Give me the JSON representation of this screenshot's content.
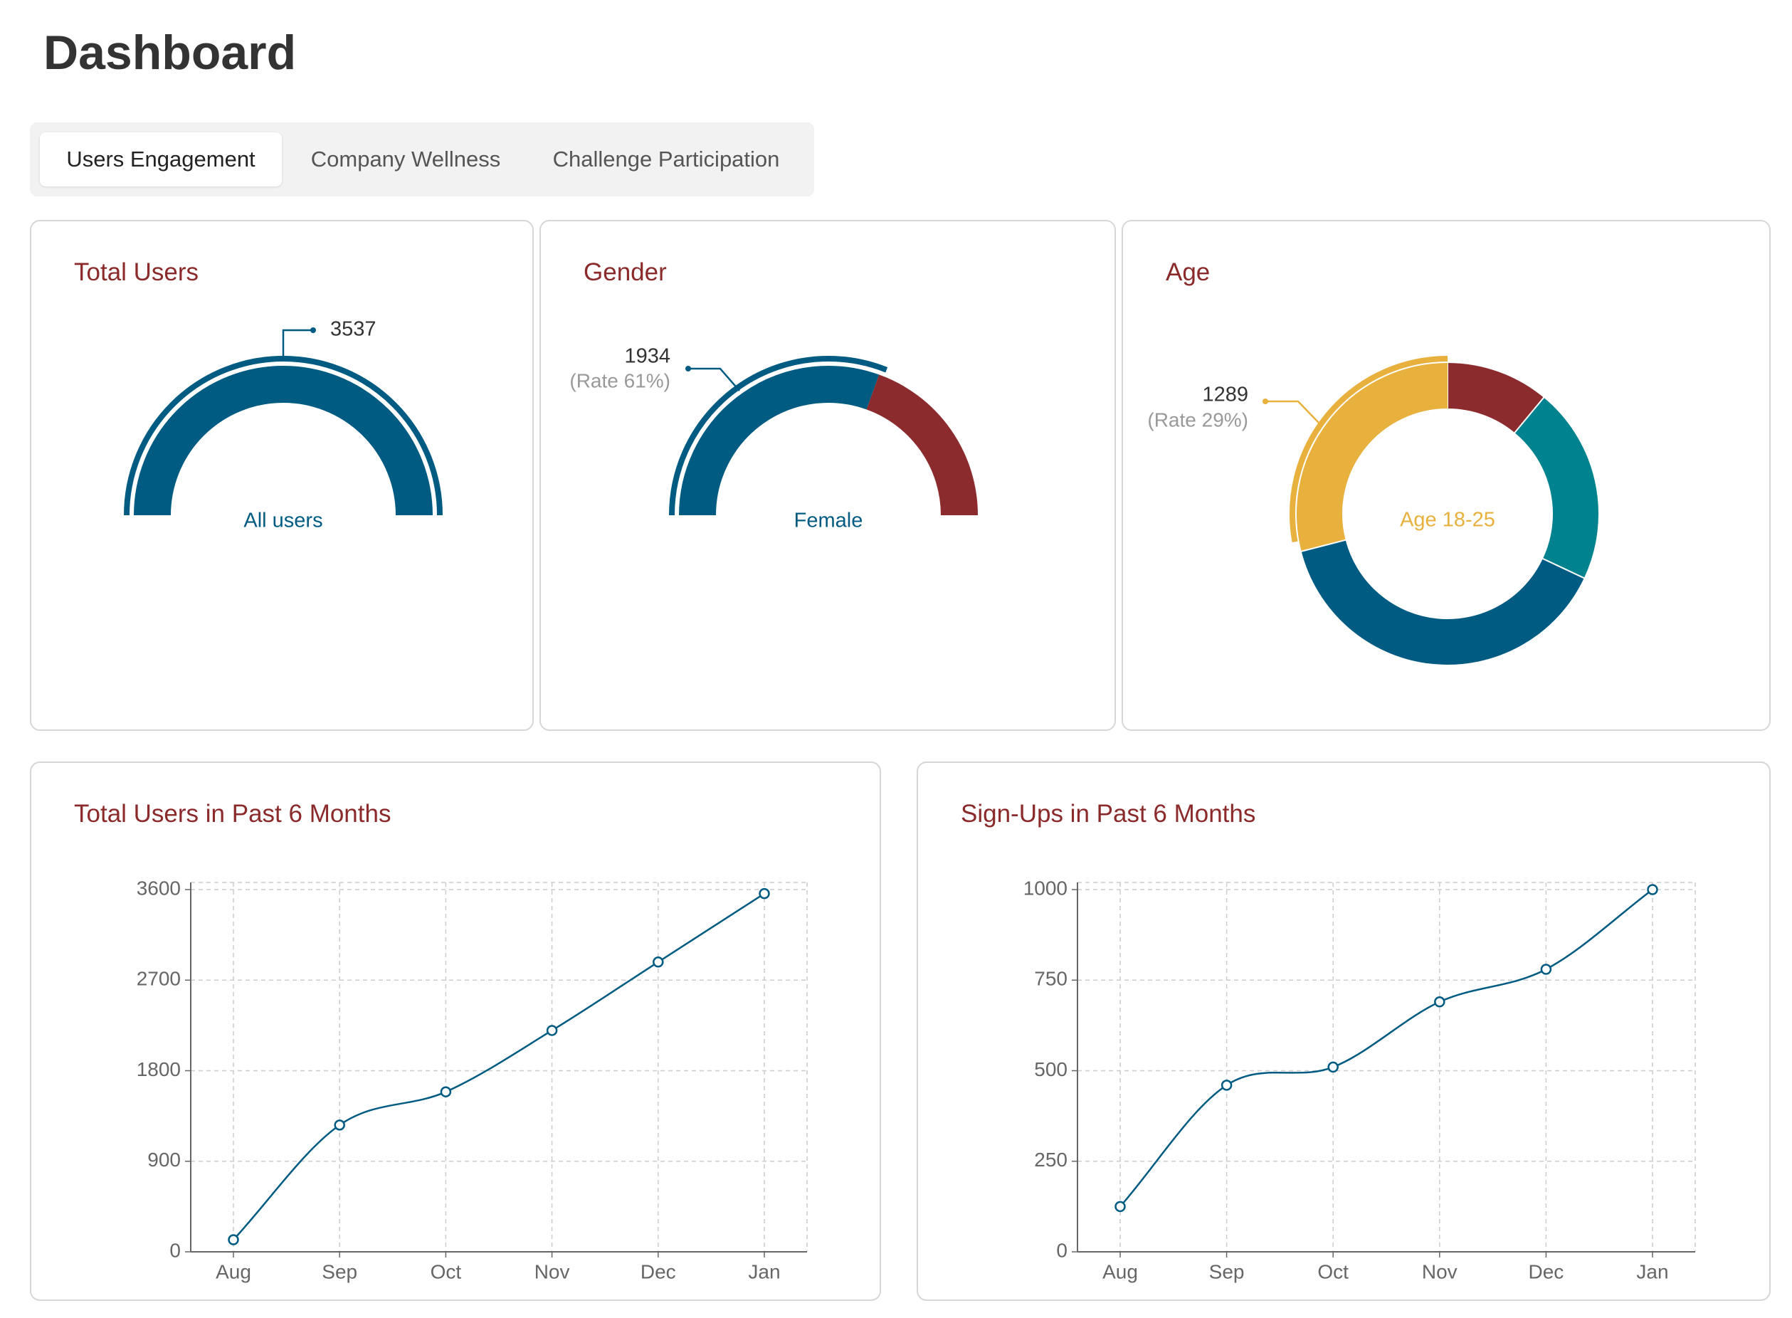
{
  "page": {
    "title": "Dashboard"
  },
  "tabs": [
    {
      "label": "Users Engagement",
      "active": true
    },
    {
      "label": "Company Wellness",
      "active": false
    },
    {
      "label": "Challenge Participation",
      "active": false
    }
  ],
  "colors": {
    "blue": "#005b82",
    "red": "#8b2b2e",
    "teal": "#00838f",
    "yellow": "#e8b13e",
    "title_red": "#8b2a2a"
  },
  "total_users": {
    "title": "Total Users",
    "value": "3537",
    "label": "All users"
  },
  "gender": {
    "title": "Gender",
    "value": "1934",
    "rate": "(Rate 61%)",
    "label": "Female",
    "female_fraction": 0.61
  },
  "age": {
    "title": "Age",
    "value": "1289",
    "rate": "(Rate 29%)",
    "label": "Age 18-25",
    "segments": [
      {
        "color": "#8b2b2e",
        "fraction": 0.11
      },
      {
        "color": "#00838f",
        "fraction": 0.21
      },
      {
        "color": "#005b82",
        "fraction": 0.39
      },
      {
        "color": "#e8b13e",
        "fraction": 0.29
      }
    ]
  },
  "chart_data": [
    {
      "type": "line",
      "title": "Total Users in Past 6 Months",
      "categories": [
        "Aug",
        "Sep",
        "Oct",
        "Nov",
        "Dec",
        "Jan"
      ],
      "values": [
        120,
        1260,
        1590,
        2200,
        2880,
        3560
      ],
      "y_ticks": [
        "0",
        "900",
        "1800",
        "2700",
        "3600"
      ],
      "ylim": [
        0,
        3600
      ],
      "grid": true
    },
    {
      "type": "line",
      "title": "Sign-Ups in Past 6 Months",
      "categories": [
        "Aug",
        "Sep",
        "Oct",
        "Nov",
        "Dec",
        "Jan"
      ],
      "values": [
        125,
        460,
        510,
        690,
        780,
        1000
      ],
      "y_ticks": [
        "0",
        "250",
        "500",
        "750",
        "1000"
      ],
      "ylim": [
        0,
        1000
      ],
      "grid": true
    }
  ]
}
